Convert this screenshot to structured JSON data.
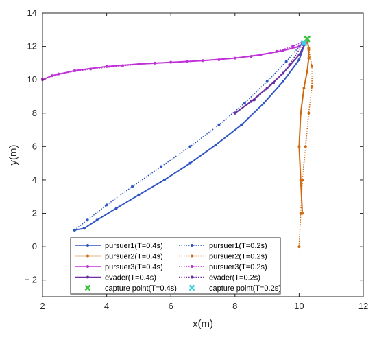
{
  "chart_data": {
    "type": "line",
    "title": "",
    "xlabel": "x(m)",
    "ylabel": "y(m)",
    "xlim": [
      2,
      12
    ],
    "ylim": [
      -3,
      14
    ],
    "xticks": [
      "2",
      "4",
      "6",
      "8",
      "10",
      "12"
    ],
    "yticks": [
      "− 2",
      "0",
      "2",
      "4",
      "6",
      "8",
      "10",
      "12",
      "14"
    ],
    "xtick_values": [
      2,
      4,
      6,
      8,
      10,
      12
    ],
    "ytick_values": [
      -2,
      0,
      2,
      4,
      6,
      8,
      10,
      12,
      14
    ],
    "grid": false,
    "legend_position": "bottom-center",
    "series": [
      {
        "name": "pursuer1(T=0.4s)",
        "color": "#2f55c4",
        "style": "solid",
        "marker": "dot",
        "x": [
          3.0,
          3.3,
          3.7,
          4.3,
          5.0,
          5.8,
          6.6,
          7.4,
          8.2,
          8.9,
          9.5,
          10.0,
          10.2
        ],
        "y": [
          1.0,
          1.1,
          1.6,
          2.3,
          3.1,
          4.0,
          5.0,
          6.1,
          7.3,
          8.6,
          9.9,
          11.2,
          12.3
        ]
      },
      {
        "name": "pursuer2(T=0.4s)",
        "color": "#d06a10",
        "style": "solid",
        "marker": "dot",
        "x": [
          10.1,
          10.05,
          10.0,
          10.05,
          10.15,
          10.25,
          10.3,
          10.3,
          10.25
        ],
        "y": [
          2.0,
          4.0,
          6.0,
          8.0,
          9.5,
          10.5,
          11.3,
          11.9,
          12.4
        ]
      },
      {
        "name": "pursuer3(T=0.4s)",
        "color": "#c030d8",
        "style": "solid",
        "marker": "dot",
        "x": [
          2.0,
          2.3,
          3.0,
          4.0,
          5.0,
          6.0,
          7.0,
          8.0,
          8.8,
          9.5,
          10.0,
          10.25
        ],
        "y": [
          10.0,
          10.25,
          10.55,
          10.8,
          10.95,
          11.05,
          11.15,
          11.3,
          11.5,
          11.75,
          12.0,
          12.4
        ]
      },
      {
        "name": "evader(T=0.4s)",
        "color": "#6a2fa0",
        "style": "solid",
        "marker": "dot",
        "x": [
          8.0,
          8.5,
          9.0,
          9.5,
          10.0,
          10.2
        ],
        "y": [
          8.0,
          8.7,
          9.5,
          10.4,
          11.5,
          12.2
        ]
      },
      {
        "name": "pursuer1(T=0.2s)",
        "color": "#2f55c4",
        "style": "dotted",
        "marker": "dot",
        "x": [
          3.0,
          3.4,
          4.0,
          4.8,
          5.7,
          6.6,
          7.5,
          8.3,
          9.0,
          9.6,
          10.1
        ],
        "y": [
          1.0,
          1.6,
          2.5,
          3.6,
          4.8,
          6.0,
          7.3,
          8.6,
          9.9,
          11.1,
          12.2
        ]
      },
      {
        "name": "pursuer2(T=0.2s)",
        "color": "#d06a10",
        "style": "dotted",
        "marker": "dot",
        "x": [
          10.0,
          10.05,
          10.1,
          10.2,
          10.3,
          10.4,
          10.4,
          10.3,
          10.25
        ],
        "y": [
          0.0,
          2.0,
          4.0,
          6.0,
          8.0,
          9.6,
          10.8,
          11.8,
          12.4
        ]
      },
      {
        "name": "pursuer3(T=0.2s)",
        "color": "#c030d8",
        "style": "dotted",
        "marker": "dot",
        "x": [
          2.0,
          2.5,
          3.5,
          4.5,
          5.5,
          6.5,
          7.5,
          8.5,
          9.3,
          9.8,
          10.25
        ],
        "y": [
          10.05,
          10.35,
          10.65,
          10.85,
          11.0,
          11.1,
          11.2,
          11.4,
          11.7,
          12.0,
          12.4
        ]
      },
      {
        "name": "evader(T=0.2s)",
        "color": "#6a2fa0",
        "style": "dotted",
        "marker": "dot",
        "x": [
          8.0,
          8.6,
          9.2,
          9.7,
          10.1
        ],
        "y": [
          8.0,
          8.8,
          9.8,
          10.9,
          12.1
        ]
      }
    ],
    "capture_points": [
      {
        "name": "capture point(T=0.4s)",
        "color": "#3cc33c",
        "marker": "x",
        "x": 10.25,
        "y": 12.45
      },
      {
        "name": "capture point(T=0.2s)",
        "color": "#3ccfe0",
        "marker": "x",
        "x": 10.15,
        "y": 12.2
      }
    ]
  }
}
